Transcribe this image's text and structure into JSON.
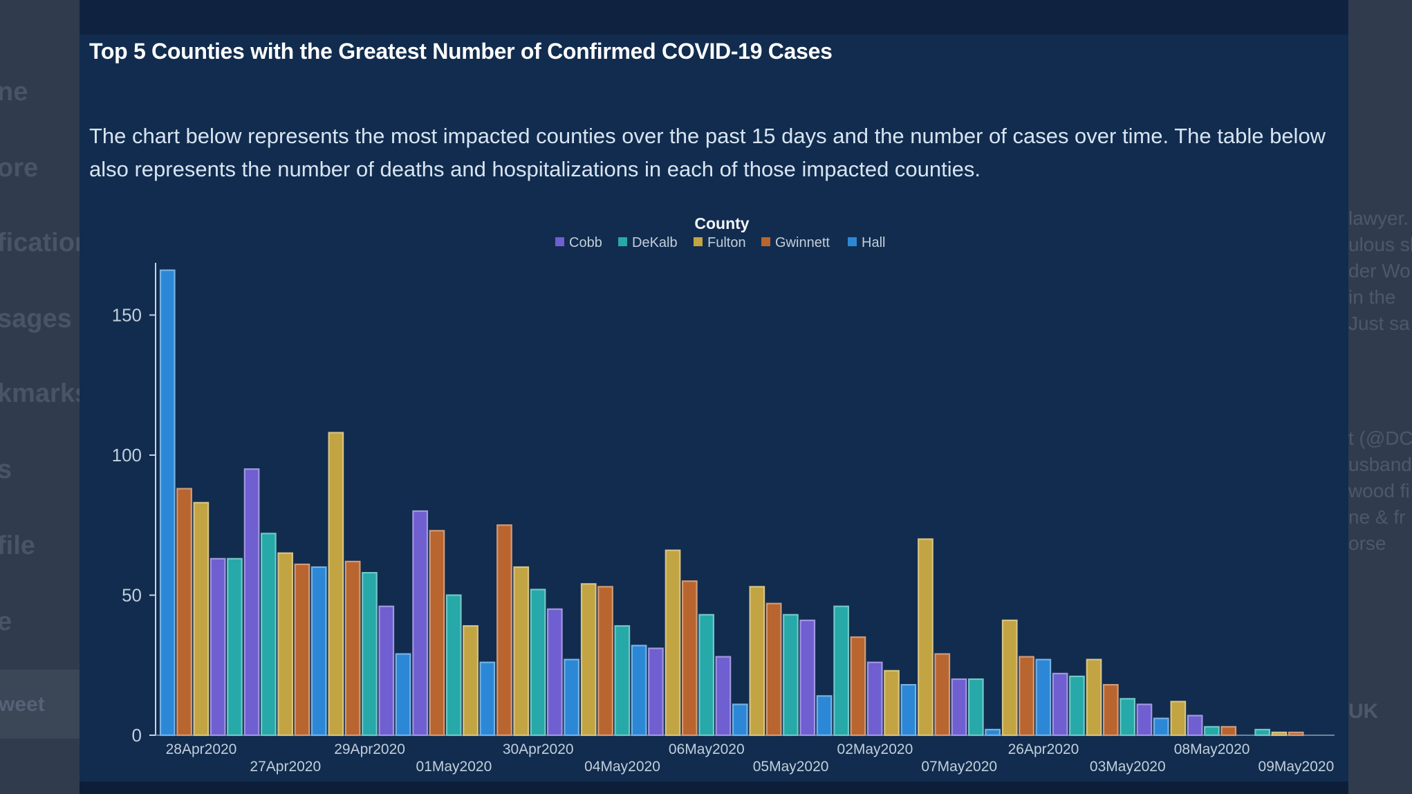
{
  "page": {
    "title": "Top 5 Counties with the Greatest Number of Confirmed COVID-19 Cases",
    "description": "The chart below represents the most impacted counties over the past 15 days and the number of cases over time. The table below also represents the number of deaths and hospitalizations in each of those impacted counties."
  },
  "background": {
    "left_sidebar": [
      "ne",
      "ore",
      "fications",
      "sages",
      "kmarks",
      "s",
      "file",
      "e"
    ],
    "left_button": "weet",
    "right_lines": [
      "lawyer.",
      "ulous sh",
      "der Wo",
      " in the",
      "Just sa",
      "t (@DC",
      "usband",
      "wood fi",
      "ne & fr",
      "orse",
      "UK"
    ]
  },
  "colors": {
    "Cobb": "#6f5fd0",
    "DeKalb": "#26a9a8",
    "Fulton": "#c2a443",
    "Gwinnett": "#b9652f",
    "Hall": "#2c88d6"
  },
  "chart_data": {
    "type": "bar",
    "title": "",
    "legend_title": "County",
    "legend_position": "top-center",
    "xlabel": "",
    "ylabel": "",
    "ylim": [
      0,
      168
    ],
    "yticks": [
      0,
      50,
      100,
      150
    ],
    "grid": false,
    "categories": [
      "28Apr2020",
      "27Apr2020",
      "29Apr2020",
      "01May2020",
      "30Apr2020",
      "04May2020",
      "06May2020",
      "05May2020",
      "02May2020",
      "07May2020",
      "26Apr2020",
      "03May2020",
      "08May2020",
      "09May2020"
    ],
    "groups": [
      [
        {
          "county": "Hall",
          "value": 166
        },
        {
          "county": "Gwinnett",
          "value": 88
        },
        {
          "county": "Fulton",
          "value": 83
        },
        {
          "county": "Cobb",
          "value": 63
        },
        {
          "county": "DeKalb",
          "value": 63
        }
      ],
      [
        {
          "county": "Cobb",
          "value": 95
        },
        {
          "county": "DeKalb",
          "value": 72
        },
        {
          "county": "Fulton",
          "value": 65
        },
        {
          "county": "Gwinnett",
          "value": 61
        },
        {
          "county": "Hall",
          "value": 60
        }
      ],
      [
        {
          "county": "Fulton",
          "value": 108
        },
        {
          "county": "Gwinnett",
          "value": 62
        },
        {
          "county": "DeKalb",
          "value": 58
        },
        {
          "county": "Cobb",
          "value": 46
        },
        {
          "county": "Hall",
          "value": 29
        }
      ],
      [
        {
          "county": "Cobb",
          "value": 80
        },
        {
          "county": "Gwinnett",
          "value": 73
        },
        {
          "county": "DeKalb",
          "value": 50
        },
        {
          "county": "Fulton",
          "value": 39
        },
        {
          "county": "Hall",
          "value": 26
        }
      ],
      [
        {
          "county": "Gwinnett",
          "value": 75
        },
        {
          "county": "Fulton",
          "value": 60
        },
        {
          "county": "DeKalb",
          "value": 52
        },
        {
          "county": "Cobb",
          "value": 45
        },
        {
          "county": "Hall",
          "value": 27
        }
      ],
      [
        {
          "county": "Fulton",
          "value": 54
        },
        {
          "county": "Gwinnett",
          "value": 53
        },
        {
          "county": "DeKalb",
          "value": 39
        },
        {
          "county": "Hall",
          "value": 32
        },
        {
          "county": "Cobb",
          "value": 31
        }
      ],
      [
        {
          "county": "Fulton",
          "value": 66
        },
        {
          "county": "Gwinnett",
          "value": 55
        },
        {
          "county": "DeKalb",
          "value": 43
        },
        {
          "county": "Cobb",
          "value": 28
        },
        {
          "county": "Hall",
          "value": 11
        }
      ],
      [
        {
          "county": "Fulton",
          "value": 53
        },
        {
          "county": "Gwinnett",
          "value": 47
        },
        {
          "county": "DeKalb",
          "value": 43
        },
        {
          "county": "Cobb",
          "value": 41
        },
        {
          "county": "Hall",
          "value": 14
        }
      ],
      [
        {
          "county": "DeKalb",
          "value": 46
        },
        {
          "county": "Gwinnett",
          "value": 35
        },
        {
          "county": "Cobb",
          "value": 26
        },
        {
          "county": "Fulton",
          "value": 23
        },
        {
          "county": "Hall",
          "value": 18
        }
      ],
      [
        {
          "county": "Fulton",
          "value": 70
        },
        {
          "county": "Gwinnett",
          "value": 29
        },
        {
          "county": "Cobb",
          "value": 20
        },
        {
          "county": "DeKalb",
          "value": 20
        },
        {
          "county": "Hall",
          "value": 2
        }
      ],
      [
        {
          "county": "Fulton",
          "value": 41
        },
        {
          "county": "Gwinnett",
          "value": 28
        },
        {
          "county": "Hall",
          "value": 27
        },
        {
          "county": "Cobb",
          "value": 22
        },
        {
          "county": "DeKalb",
          "value": 21
        }
      ],
      [
        {
          "county": "Fulton",
          "value": 27
        },
        {
          "county": "Gwinnett",
          "value": 18
        },
        {
          "county": "DeKalb",
          "value": 13
        },
        {
          "county": "Cobb",
          "value": 11
        },
        {
          "county": "Hall",
          "value": 6
        }
      ],
      [
        {
          "county": "Fulton",
          "value": 12
        },
        {
          "county": "Cobb",
          "value": 7
        },
        {
          "county": "DeKalb",
          "value": 3
        },
        {
          "county": "Gwinnett",
          "value": 3
        }
      ],
      [
        {
          "county": "DeKalb",
          "value": 2
        },
        {
          "county": "Fulton",
          "value": 1
        },
        {
          "county": "Gwinnett",
          "value": 1
        }
      ]
    ]
  }
}
